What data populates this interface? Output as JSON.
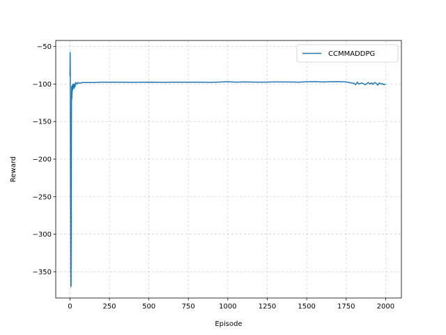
{
  "chart_data": {
    "type": "line",
    "xlabel": "Episode",
    "ylabel": "Reward",
    "xlim": [
      -90,
      2100
    ],
    "ylim": [
      -385,
      -42
    ],
    "xticks": [
      0,
      250,
      500,
      750,
      1000,
      1250,
      1500,
      1750,
      2000
    ],
    "yticks": [
      -50,
      -100,
      -150,
      -200,
      -250,
      -300,
      -350
    ],
    "xtick_labels": [
      "0",
      "250",
      "500",
      "750",
      "1000",
      "1250",
      "1500",
      "1750",
      "2000"
    ],
    "ytick_labels": [
      "−50",
      "−100",
      "−150",
      "−200",
      "−250",
      "−300",
      "−350"
    ],
    "grid": true,
    "legend_position": "top-right",
    "series": [
      {
        "name": "CCMMADDPG",
        "color": "#1f77b4",
        "x": [
          0,
          1,
          2,
          3,
          4,
          5,
          6,
          7,
          8,
          9,
          10,
          11,
          12,
          13,
          14,
          15,
          17,
          19,
          21,
          23,
          25,
          27,
          30,
          33,
          36,
          40,
          45,
          50,
          60,
          80,
          100,
          150,
          200,
          300,
          400,
          500,
          600,
          700,
          800,
          900,
          1000,
          1050,
          1100,
          1200,
          1300,
          1400,
          1450,
          1500,
          1550,
          1600,
          1650,
          1700,
          1750,
          1780,
          1800,
          1810,
          1820,
          1830,
          1850,
          1870,
          1890,
          1900,
          1910,
          1920,
          1930,
          1940,
          1950,
          1960,
          1970,
          1980,
          1990,
          2000
        ],
        "y": [
          -90,
          -58,
          -80,
          -150,
          -260,
          -350,
          -370,
          -368,
          -300,
          -180,
          -115,
          -103,
          -120,
          -108,
          -112,
          -102,
          -108,
          -100,
          -105,
          -102,
          -106,
          -100,
          -104,
          -103,
          -98,
          -99,
          -100,
          -98,
          -99,
          -98,
          -98,
          -98,
          -97.5,
          -97.5,
          -97.8,
          -97.5,
          -97.8,
          -97.5,
          -97.5,
          -97.8,
          -97,
          -97.5,
          -97.2,
          -97.5,
          -97.2,
          -97.3,
          -97.5,
          -97,
          -96.8,
          -97.3,
          -97,
          -96.8,
          -97.2,
          -98.5,
          -99,
          -101,
          -97.5,
          -100,
          -98.5,
          -101,
          -98,
          -100,
          -98.5,
          -100.5,
          -98,
          -99,
          -101.5,
          -98.5,
          -100,
          -99.5,
          -101,
          -100
        ]
      }
    ]
  }
}
